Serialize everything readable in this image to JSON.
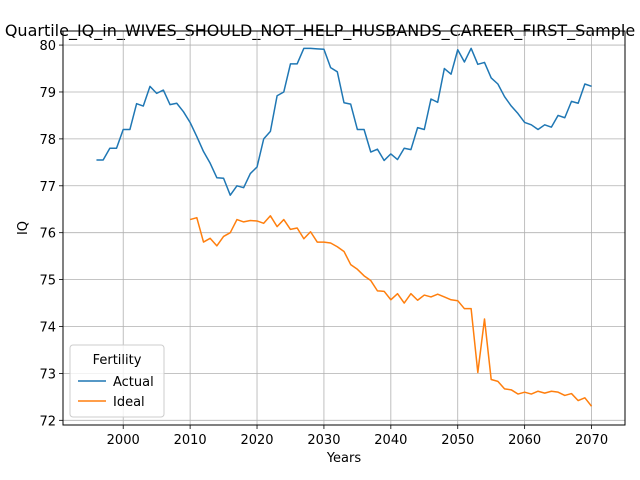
{
  "chart_data": {
    "type": "line",
    "title": "Quartile_IQ_in_WIVES_SHOULD_NOT_HELP_HUSBANDS_CAREER_FIRST_Sample",
    "xlabel": "Years",
    "ylabel": "IQ",
    "xlim": [
      1991,
      2075
    ],
    "ylim": [
      71.9,
      80.3
    ],
    "x_ticks": [
      2000,
      2010,
      2020,
      2030,
      2040,
      2050,
      2060,
      2070
    ],
    "y_ticks": [
      72,
      73,
      74,
      75,
      76,
      77,
      78,
      79,
      80
    ],
    "grid": true,
    "legend": {
      "title": "Fertility",
      "placement": "lower-left"
    },
    "series": [
      {
        "name": "Actual",
        "color": "#1f77b4",
        "x": [
          1996,
          1997,
          1998,
          1999,
          2000,
          2001,
          2002,
          2003,
          2004,
          2005,
          2006,
          2007,
          2008,
          2009,
          2010,
          2011,
          2012,
          2013,
          2014,
          2015,
          2016,
          2017,
          2018,
          2019,
          2020,
          2021,
          2022,
          2023,
          2024,
          2025,
          2026,
          2027,
          2028,
          2029,
          2030,
          2031,
          2032,
          2033,
          2034,
          2035,
          2036,
          2037,
          2038,
          2039,
          2040,
          2041,
          2042,
          2043,
          2044,
          2045,
          2046,
          2047,
          2048,
          2049,
          2050,
          2051,
          2052,
          2053,
          2054,
          2055,
          2056,
          2057,
          2058,
          2059,
          2060,
          2061,
          2062,
          2063,
          2064,
          2065,
          2066,
          2067,
          2068,
          2069,
          2070
        ],
        "values": [
          77.55,
          77.55,
          77.8,
          77.8,
          78.2,
          78.2,
          78.75,
          78.7,
          79.12,
          78.97,
          79.04,
          78.73,
          78.76,
          78.58,
          78.35,
          78.05,
          77.73,
          77.48,
          77.17,
          77.16,
          76.8,
          77.0,
          76.96,
          77.26,
          77.4,
          78.0,
          78.16,
          78.92,
          79.0,
          79.6,
          79.6,
          79.93,
          79.93,
          79.92,
          79.91,
          79.52,
          79.43,
          78.77,
          78.74,
          78.2,
          78.2,
          77.72,
          77.78,
          77.54,
          77.68,
          77.56,
          77.8,
          77.77,
          78.24,
          78.2,
          78.85,
          78.78,
          79.5,
          79.38,
          79.9,
          79.64,
          79.93,
          79.59,
          79.63,
          79.3,
          79.17,
          78.9,
          78.7,
          78.54,
          78.35,
          78.3,
          78.2,
          78.3,
          78.25,
          78.5,
          78.45,
          78.8,
          78.76,
          79.17,
          79.12
        ]
      },
      {
        "name": "Ideal",
        "color": "#ff7f0e",
        "x": [
          2010,
          2011,
          2012,
          2013,
          2014,
          2015,
          2016,
          2017,
          2018,
          2019,
          2020,
          2021,
          2022,
          2023,
          2024,
          2025,
          2026,
          2027,
          2028,
          2029,
          2030,
          2031,
          2032,
          2033,
          2034,
          2035,
          2036,
          2037,
          2038,
          2039,
          2040,
          2041,
          2042,
          2043,
          2044,
          2045,
          2046,
          2047,
          2048,
          2049,
          2050,
          2051,
          2052,
          2053,
          2054,
          2055,
          2056,
          2057,
          2058,
          2059,
          2060,
          2061,
          2062,
          2063,
          2064,
          2065,
          2066,
          2067,
          2068,
          2069,
          2070
        ],
        "values": [
          76.28,
          76.32,
          75.8,
          75.88,
          75.72,
          75.92,
          76.0,
          76.28,
          76.23,
          76.26,
          76.25,
          76.2,
          76.36,
          76.13,
          76.28,
          76.07,
          76.1,
          75.87,
          76.02,
          75.8,
          75.8,
          75.78,
          75.7,
          75.6,
          75.32,
          75.22,
          75.08,
          74.98,
          74.76,
          74.75,
          74.57,
          74.7,
          74.5,
          74.7,
          74.56,
          74.67,
          74.63,
          74.69,
          74.63,
          74.57,
          74.55,
          74.38,
          74.38,
          73.02,
          74.16,
          72.87,
          72.83,
          72.67,
          72.65,
          72.56,
          72.6,
          72.56,
          72.62,
          72.58,
          72.62,
          72.6,
          72.53,
          72.57,
          72.42,
          72.48,
          72.3
        ]
      }
    ]
  }
}
